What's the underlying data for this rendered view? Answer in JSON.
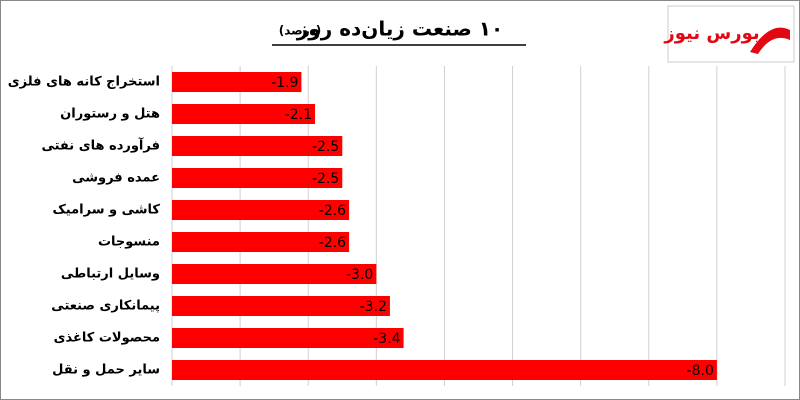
{
  "chart_data": {
    "type": "bar",
    "orientation": "horizontal",
    "title": "۱۰ صنعت زیان‌ده روز",
    "subtitle": "(درصد)",
    "logo": "بورس نیوز",
    "categories": [
      "استخراج کانه های فلزی",
      "هتل و رستوران",
      "فرآورده های نفتی",
      "عمده فروشی",
      "کاشی و سرامیک",
      "منسوجات",
      "وسایل ارتباطی",
      "پیمانکاری صنعتی",
      "محصولات کاغذی",
      "سایر حمل و نقل"
    ],
    "values": [
      -1.9,
      -2.1,
      -2.5,
      -2.5,
      -2.6,
      -2.6,
      -3.0,
      -3.2,
      -3.4,
      -8.0
    ],
    "value_labels": [
      "-1.9",
      "-2.1",
      "-2.5",
      "-2.5",
      "-2.6",
      "-2.6",
      "-3.0",
      "-3.2",
      "-3.4",
      "-8.0"
    ],
    "color": "#ff0000",
    "xlim": [
      0,
      -9
    ],
    "xticks": [
      0,
      -1,
      -2,
      -3,
      -4,
      -5,
      -6,
      -7,
      -8,
      -9
    ],
    "grid": true
  }
}
